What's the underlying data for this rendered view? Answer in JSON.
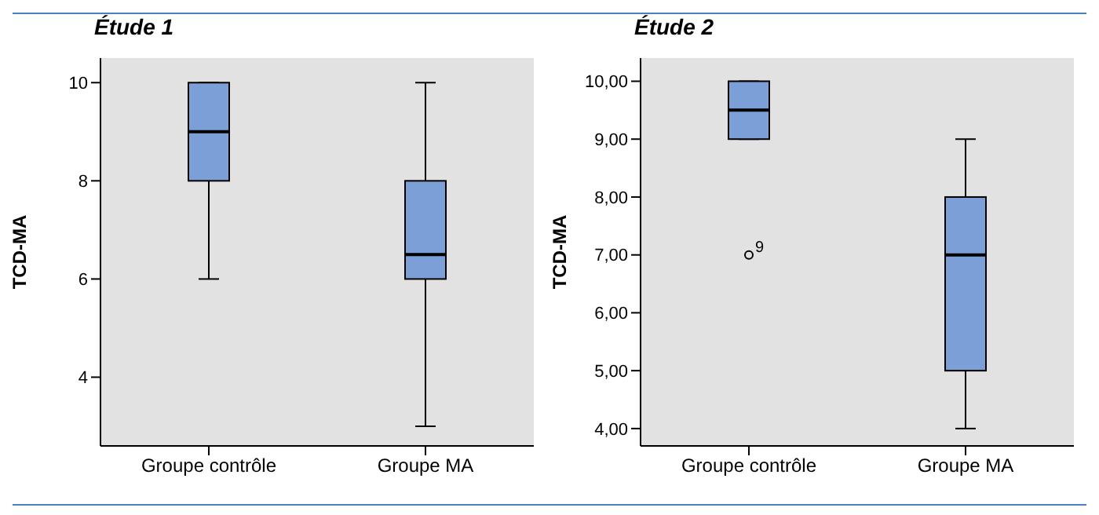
{
  "chart_data": [
    {
      "type": "box",
      "title": "Étude 1",
      "ylabel": "TCD-MA",
      "categories": [
        "Groupe contrôle",
        "Groupe MA"
      ],
      "color": "#7b9fd6",
      "ylim": [
        2.6,
        10.5
      ],
      "yticks": [
        4,
        6,
        8,
        10
      ],
      "boxes": [
        {
          "low": 6,
          "q1": 8,
          "median": 9,
          "q3": 10,
          "high": 10
        },
        {
          "low": 3,
          "q1": 6,
          "median": 6.5,
          "q3": 8,
          "high": 10
        }
      ]
    },
    {
      "type": "box",
      "title": "Étude 2",
      "ylabel": "TCD-MA",
      "categories": [
        "Groupe contrôle",
        "Groupe MA"
      ],
      "color": "#7b9fd6",
      "ylim": [
        3.7,
        10.4
      ],
      "yticks": [
        {
          "value": 4,
          "label": "4,00"
        },
        {
          "value": 5,
          "label": "5,00"
        },
        {
          "value": 6,
          "label": "6,00"
        },
        {
          "value": 7,
          "label": "7,00"
        },
        {
          "value": 8,
          "label": "8,00"
        },
        {
          "value": 9,
          "label": "9,00"
        },
        {
          "value": 10,
          "label": "10,00"
        }
      ],
      "boxes": [
        {
          "low": 9,
          "q1": 9,
          "median": 9.5,
          "q3": 10,
          "high": 10,
          "outliers": [
            7
          ]
        },
        {
          "low": 4,
          "q1": 5,
          "median": 7,
          "q3": 8,
          "high": 9
        }
      ],
      "annotations": [
        "9"
      ]
    }
  ]
}
